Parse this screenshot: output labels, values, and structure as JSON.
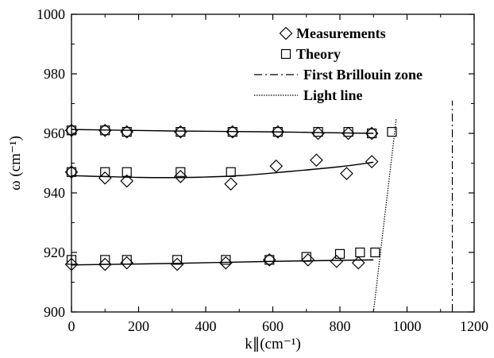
{
  "chart_data": {
    "type": "scatter",
    "title": "",
    "xlabel": "k∥(cm⁻¹)",
    "ylabel": "ω (cm⁻¹)",
    "xlim": [
      0,
      1200
    ],
    "ylim": [
      900,
      1000
    ],
    "xticks": [
      "0",
      "200",
      "400",
      "600",
      "800",
      "1000",
      "1200"
    ],
    "yticks": [
      "900",
      "920",
      "940",
      "960",
      "980",
      "1000"
    ],
    "grid": false,
    "legend_position": "top-right",
    "series": [
      {
        "name": "Measurements",
        "marker": "diamond",
        "points": [
          [
            0,
            961
          ],
          [
            100,
            961
          ],
          [
            165,
            960.5
          ],
          [
            325,
            960.5
          ],
          [
            480,
            960.5
          ],
          [
            615,
            960.5
          ],
          [
            735,
            960
          ],
          [
            825,
            960
          ],
          [
            895,
            960
          ],
          [
            0,
            947
          ],
          [
            100,
            945
          ],
          [
            165,
            944
          ],
          [
            325,
            945.5
          ],
          [
            475,
            943
          ],
          [
            610,
            949
          ],
          [
            730,
            951
          ],
          [
            820,
            946.5
          ],
          [
            895,
            950.5
          ],
          [
            0,
            916
          ],
          [
            100,
            916
          ],
          [
            165,
            916.5
          ],
          [
            315,
            916
          ],
          [
            460,
            916.5
          ],
          [
            590,
            917.5
          ],
          [
            705,
            917.5
          ],
          [
            790,
            917
          ],
          [
            855,
            916.5
          ]
        ]
      },
      {
        "name": "Theory",
        "marker": "square",
        "points": [
          [
            0,
            961
          ],
          [
            100,
            961
          ],
          [
            165,
            960.5
          ],
          [
            325,
            960.5
          ],
          [
            480,
            960.5
          ],
          [
            615,
            960.5
          ],
          [
            735,
            960.5
          ],
          [
            825,
            960.5
          ],
          [
            895,
            960
          ],
          [
            955,
            960.5
          ],
          [
            0,
            947
          ],
          [
            100,
            947
          ],
          [
            165,
            947
          ],
          [
            325,
            947
          ],
          [
            475,
            947
          ],
          [
            0,
            917.5
          ],
          [
            100,
            917.5
          ],
          [
            165,
            917.5
          ],
          [
            315,
            917.5
          ],
          [
            460,
            917.5
          ],
          [
            590,
            917.5
          ],
          [
            700,
            918.5
          ],
          [
            800,
            919.5
          ],
          [
            860,
            920
          ],
          [
            905,
            920
          ]
        ]
      }
    ],
    "fit_curves": [
      [
        [
          0,
          961.3
        ],
        [
          300,
          960.8
        ],
        [
          600,
          960.5
        ],
        [
          900,
          960
        ]
      ],
      [
        [
          0,
          945.8
        ],
        [
          200,
          945.2
        ],
        [
          350,
          945.2
        ],
        [
          500,
          945.8
        ],
        [
          650,
          947.2
        ],
        [
          800,
          948.8
        ],
        [
          900,
          950.3
        ]
      ],
      [
        [
          0,
          915.8
        ],
        [
          300,
          916.3
        ],
        [
          600,
          917
        ],
        [
          900,
          917.5
        ]
      ]
    ],
    "reference_lines": [
      {
        "name": "First Brillouin zone",
        "style": "dash-dot",
        "x1": 1135,
        "y1": 900,
        "x2": 1135,
        "y2": 971
      },
      {
        "name": "Light line",
        "style": "dotted",
        "x1": 900,
        "y1": 900,
        "x2": 968,
        "y2": 965
      }
    ]
  }
}
